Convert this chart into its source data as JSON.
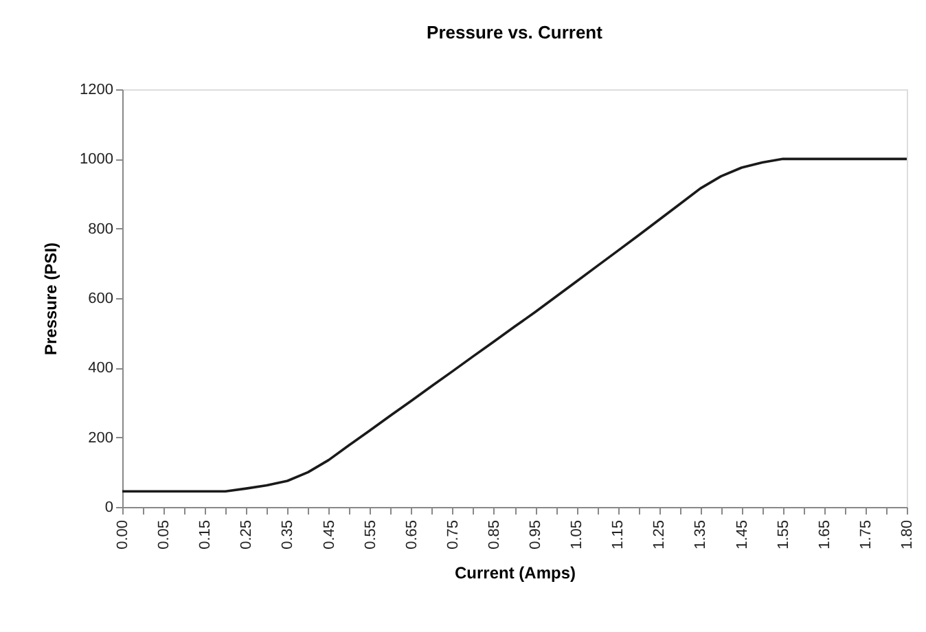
{
  "chart_data": {
    "type": "line",
    "title": "Pressure vs. Current",
    "xlabel": "Current (Amps)",
    "ylabel": "Pressure (PSI)",
    "categories": [
      "0.00",
      null,
      "0.05",
      null,
      "0.15",
      null,
      "0.25",
      null,
      "0.35",
      null,
      "0.45",
      null,
      "0.55",
      null,
      "0.65",
      null,
      "0.75",
      null,
      "0.85",
      null,
      "0.95",
      null,
      "1.05",
      null,
      "1.15",
      null,
      "1.25",
      null,
      "1.35",
      null,
      "1.45",
      null,
      "1.55",
      null,
      "1.65",
      null,
      "1.75",
      null,
      "1.80"
    ],
    "series": [
      {
        "color": "#1a1a1a",
        "values": [
          45,
          45,
          45,
          45,
          45,
          45,
          53,
          62,
          75,
          100,
          135,
          178,
          220,
          263,
          305,
          348,
          390,
          433,
          475,
          518,
          560,
          604,
          648,
          692,
          736,
          780,
          825,
          870,
          915,
          950,
          975,
          990,
          1000,
          1000,
          1000,
          1000,
          1000,
          1000,
          1000
        ]
      }
    ],
    "ylim": [
      0,
      1200
    ],
    "yticks": [
      0,
      200,
      400,
      600,
      800,
      1000,
      1200
    ],
    "grid": false,
    "marker": "none",
    "line_style": "solid"
  }
}
